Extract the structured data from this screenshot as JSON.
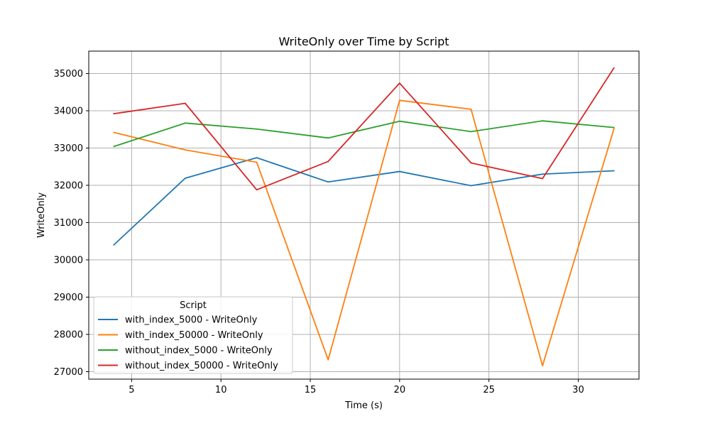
{
  "chart_data": {
    "type": "line",
    "title": "WriteOnly over Time by Script",
    "xlabel": "Time (s)",
    "ylabel": "WriteOnly",
    "xlim": [
      2.6,
      33.4
    ],
    "ylim": [
      26800,
      35600
    ],
    "xticks": [
      5,
      10,
      15,
      20,
      25,
      30
    ],
    "yticks": [
      27000,
      28000,
      29000,
      30000,
      31000,
      32000,
      33000,
      34000,
      35000
    ],
    "grid": true,
    "legend_title": "Script",
    "legend_position": "lower-left",
    "x": [
      4,
      8,
      12,
      16,
      20,
      24,
      28,
      32
    ],
    "series": [
      {
        "name": "with_index_5000 - WriteOnly",
        "color": "#1f77b4",
        "values": [
          30400,
          32190,
          32740,
          32090,
          32370,
          31990,
          32300,
          32390
        ]
      },
      {
        "name": "with_index_50000 - WriteOnly",
        "color": "#ff7f0e",
        "values": [
          33420,
          32950,
          32620,
          27320,
          34280,
          34040,
          27160,
          33520
        ]
      },
      {
        "name": "without_index_5000 - WriteOnly",
        "color": "#2ca02c",
        "values": [
          33040,
          33670,
          33510,
          33270,
          33720,
          33440,
          33730,
          33550
        ]
      },
      {
        "name": "without_index_50000 - WriteOnly",
        "color": "#d62728",
        "values": [
          33920,
          34200,
          31880,
          32640,
          34740,
          32600,
          32180,
          35150
        ]
      }
    ]
  }
}
